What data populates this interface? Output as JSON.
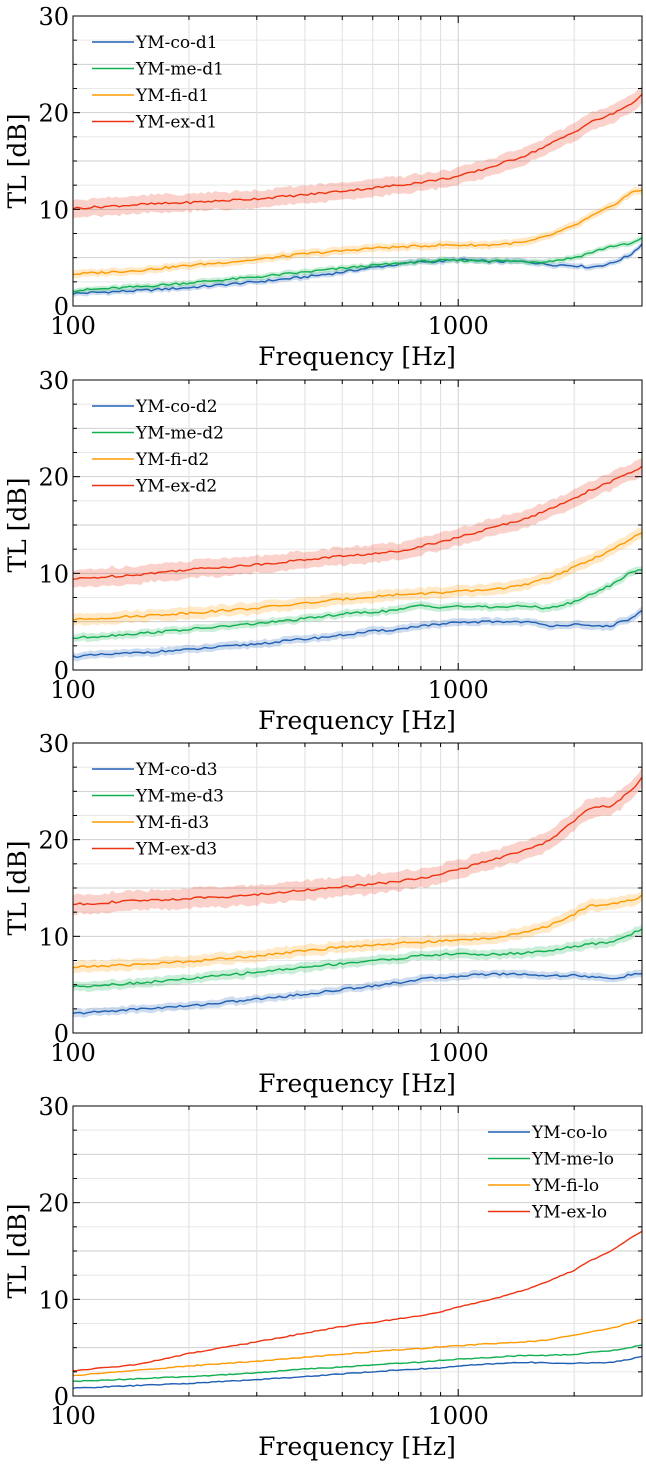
{
  "chart_data": [
    {
      "type": "line",
      "xlabel": "Frequency [Hz]",
      "ylabel": "TL [dB]",
      "xscale": "log",
      "xlim": [
        100,
        3000
      ],
      "ylim": [
        0,
        30
      ],
      "xticks": [
        "100",
        "1000"
      ],
      "yticks": [
        "0",
        "10",
        "20",
        "30"
      ],
      "grid": true,
      "legend_position": "top-left",
      "x": [
        100,
        150,
        200,
        300,
        400,
        500,
        600,
        700,
        800,
        900,
        1000,
        1200,
        1500,
        1700,
        2000,
        2200,
        2500,
        2800,
        3000
      ],
      "series": [
        {
          "name": "YM-co-d1",
          "color": "#1f5fb4",
          "band": 0.3,
          "values": [
            1.3,
            1.6,
            1.9,
            2.5,
            3.0,
            3.5,
            4.0,
            4.3,
            4.6,
            4.6,
            4.8,
            4.6,
            4.6,
            4.3,
            4.2,
            4.0,
            4.4,
            5.3,
            6.4
          ]
        },
        {
          "name": "YM-me-d1",
          "color": "#10b050",
          "band": 0.3,
          "values": [
            1.6,
            2.0,
            2.4,
            3.0,
            3.5,
            3.9,
            4.2,
            4.4,
            4.6,
            4.7,
            4.7,
            4.7,
            4.6,
            4.6,
            5.0,
            5.5,
            6.2,
            6.4,
            7.0
          ]
        },
        {
          "name": "YM-fi-d1",
          "color": "#ff9a00",
          "band": 0.4,
          "values": [
            3.3,
            3.7,
            4.2,
            4.8,
            5.4,
            5.7,
            6.0,
            6.1,
            6.2,
            6.3,
            6.3,
            6.3,
            6.6,
            7.2,
            8.3,
            9.2,
            10.3,
            11.7,
            12.0
          ]
        },
        {
          "name": "YM-ex-d1",
          "color": "#ee3311",
          "band": 0.9,
          "values": [
            10.1,
            10.5,
            10.7,
            11.1,
            11.5,
            11.9,
            12.2,
            12.5,
            12.8,
            13.1,
            13.4,
            14.3,
            15.6,
            16.6,
            18.0,
            19.0,
            19.8,
            20.9,
            21.8
          ]
        }
      ]
    },
    {
      "type": "line",
      "xlabel": "Frequency [Hz]",
      "ylabel": "TL [dB]",
      "xscale": "log",
      "xlim": [
        100,
        3000
      ],
      "ylim": [
        0,
        30
      ],
      "xticks": [
        "100",
        "1000"
      ],
      "yticks": [
        "0",
        "10",
        "20",
        "30"
      ],
      "grid": true,
      "legend_position": "top-left",
      "x": [
        100,
        150,
        200,
        300,
        400,
        500,
        600,
        700,
        800,
        900,
        1000,
        1200,
        1500,
        1700,
        2000,
        2200,
        2500,
        2800,
        3000
      ],
      "series": [
        {
          "name": "YM-co-d2",
          "color": "#1f5fb4",
          "band": 0.4,
          "values": [
            1.4,
            1.8,
            2.1,
            2.7,
            3.2,
            3.6,
            4.0,
            4.2,
            4.6,
            4.7,
            4.9,
            5.0,
            5.0,
            4.6,
            4.7,
            4.5,
            4.6,
            5.3,
            6.1
          ]
        },
        {
          "name": "YM-me-d2",
          "color": "#10b050",
          "band": 0.4,
          "values": [
            3.3,
            3.8,
            4.2,
            4.8,
            5.3,
            5.8,
            6.0,
            6.2,
            6.7,
            6.5,
            6.6,
            6.5,
            6.6,
            6.4,
            7.0,
            7.8,
            8.8,
            10.1,
            10.4
          ]
        },
        {
          "name": "YM-fi-d2",
          "color": "#ff9a00",
          "band": 0.6,
          "values": [
            5.2,
            5.6,
            5.9,
            6.4,
            6.9,
            7.3,
            7.6,
            7.8,
            7.9,
            8.0,
            8.1,
            8.3,
            8.8,
            9.5,
            10.6,
            11.4,
            12.4,
            13.5,
            14.2
          ]
        },
        {
          "name": "YM-ex-d2",
          "color": "#ee3311",
          "band": 0.9,
          "values": [
            9.4,
            9.9,
            10.4,
            10.9,
            11.4,
            11.8,
            12.0,
            12.3,
            12.8,
            13.3,
            13.7,
            14.6,
            15.7,
            16.5,
            17.8,
            18.6,
            19.5,
            20.4,
            21.0
          ]
        }
      ]
    },
    {
      "type": "line",
      "xlabel": "Frequency [Hz]",
      "ylabel": "TL [dB]",
      "xscale": "log",
      "xlim": [
        100,
        3000
      ],
      "ylim": [
        0,
        30
      ],
      "xticks": [
        "100",
        "1000"
      ],
      "yticks": [
        "0",
        "10",
        "20",
        "30"
      ],
      "grid": true,
      "legend_position": "top-left",
      "x": [
        100,
        150,
        200,
        300,
        400,
        500,
        600,
        700,
        800,
        900,
        1000,
        1200,
        1500,
        1700,
        2000,
        2200,
        2500,
        2800,
        3000
      ],
      "series": [
        {
          "name": "YM-co-d3",
          "color": "#1f5fb4",
          "band": 0.4,
          "values": [
            2.0,
            2.5,
            2.8,
            3.5,
            4.0,
            4.5,
            4.9,
            5.2,
            5.6,
            5.7,
            5.9,
            6.1,
            6.1,
            5.9,
            6.0,
            5.8,
            5.6,
            6.0,
            6.2
          ]
        },
        {
          "name": "YM-me-d3",
          "color": "#10b050",
          "band": 0.5,
          "values": [
            4.8,
            5.2,
            5.6,
            6.3,
            6.8,
            7.2,
            7.5,
            7.7,
            8.0,
            8.1,
            8.2,
            8.1,
            8.3,
            8.5,
            8.9,
            9.2,
            9.4,
            10.2,
            10.8
          ]
        },
        {
          "name": "YM-fi-d3",
          "color": "#ff9a00",
          "band": 0.6,
          "values": [
            6.8,
            7.1,
            7.4,
            8.0,
            8.5,
            8.9,
            9.1,
            9.3,
            9.4,
            9.5,
            9.6,
            9.8,
            10.4,
            11.0,
            12.3,
            13.2,
            13.4,
            13.7,
            14.2
          ]
        },
        {
          "name": "YM-ex-d3",
          "color": "#ee3311",
          "band": 1.0,
          "values": [
            13.3,
            13.7,
            13.9,
            14.3,
            14.8,
            15.1,
            15.4,
            15.7,
            16.0,
            16.5,
            16.9,
            17.8,
            18.9,
            19.8,
            21.9,
            23.3,
            23.5,
            25.0,
            26.4
          ]
        }
      ]
    },
    {
      "type": "line",
      "xlabel": "Frequency [Hz]",
      "ylabel": "TL [dB]",
      "xscale": "log",
      "xlim": [
        100,
        3000
      ],
      "ylim": [
        0,
        30
      ],
      "xticks": [
        "100",
        "1000"
      ],
      "yticks": [
        "0",
        "10",
        "20",
        "30"
      ],
      "grid": true,
      "legend_position": "top-right",
      "x": [
        100,
        150,
        200,
        300,
        400,
        500,
        600,
        700,
        800,
        900,
        1000,
        1200,
        1500,
        1700,
        2000,
        2200,
        2500,
        2800,
        3000
      ],
      "series": [
        {
          "name": "YM-co-lo",
          "color": "#1f5fb4",
          "band": 0,
          "values": [
            0.8,
            1.1,
            1.3,
            1.7,
            2.0,
            2.3,
            2.5,
            2.7,
            2.8,
            2.9,
            3.1,
            3.3,
            3.5,
            3.4,
            3.4,
            3.4,
            3.5,
            3.8,
            4.1
          ]
        },
        {
          "name": "YM-me-lo",
          "color": "#10b050",
          "band": 0,
          "values": [
            1.5,
            1.8,
            2.0,
            2.4,
            2.8,
            3.0,
            3.2,
            3.4,
            3.5,
            3.7,
            3.8,
            4.0,
            4.2,
            4.2,
            4.3,
            4.5,
            4.7,
            5.0,
            5.3
          ]
        },
        {
          "name": "YM-fi-lo",
          "color": "#ff9a00",
          "band": 0,
          "values": [
            2.1,
            2.7,
            3.1,
            3.6,
            4.0,
            4.3,
            4.6,
            4.8,
            4.9,
            5.1,
            5.2,
            5.4,
            5.6,
            5.8,
            6.3,
            6.6,
            7.0,
            7.6,
            7.9
          ]
        },
        {
          "name": "YM-ex-lo",
          "color": "#ee3311",
          "band": 0,
          "values": [
            2.6,
            3.3,
            4.4,
            5.6,
            6.5,
            7.2,
            7.6,
            8.0,
            8.3,
            8.7,
            9.2,
            9.9,
            11.0,
            11.8,
            13.0,
            14.0,
            15.0,
            16.3,
            17.0
          ]
        }
      ]
    }
  ]
}
